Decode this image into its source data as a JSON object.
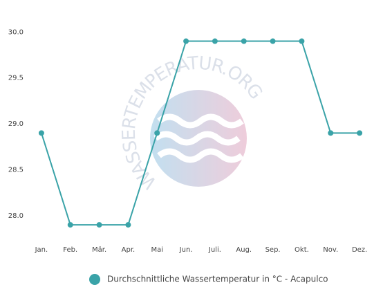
{
  "chart_data": {
    "type": "line",
    "watermark": "WASSERTEMPERATUR.ORG",
    "categories": [
      "Jan.",
      "Feb.",
      "Mär.",
      "Apr.",
      "Mai",
      "Jun.",
      "Juli.",
      "Aug.",
      "Sep.",
      "Okt.",
      "Nov.",
      "Dez."
    ],
    "series": [
      {
        "name": "Durchschnittliche Wassertemperatur in °C - Acapulco",
        "color": "#3aa3a8",
        "values": [
          28.9,
          27.9,
          27.9,
          27.9,
          28.9,
          29.9,
          29.9,
          29.9,
          29.9,
          29.9,
          28.9,
          28.9
        ]
      }
    ],
    "ylim": [
      27.75,
      30.1
    ],
    "yticks": [
      {
        "value": 28,
        "label": "28.0"
      },
      {
        "value": 28.5,
        "label": "28.5"
      },
      {
        "value": 29,
        "label": "29.0"
      },
      {
        "value": 29.5,
        "label": "29.5"
      },
      {
        "value": 30,
        "label": "30.0"
      }
    ],
    "grid": false,
    "legend": "bottom"
  }
}
